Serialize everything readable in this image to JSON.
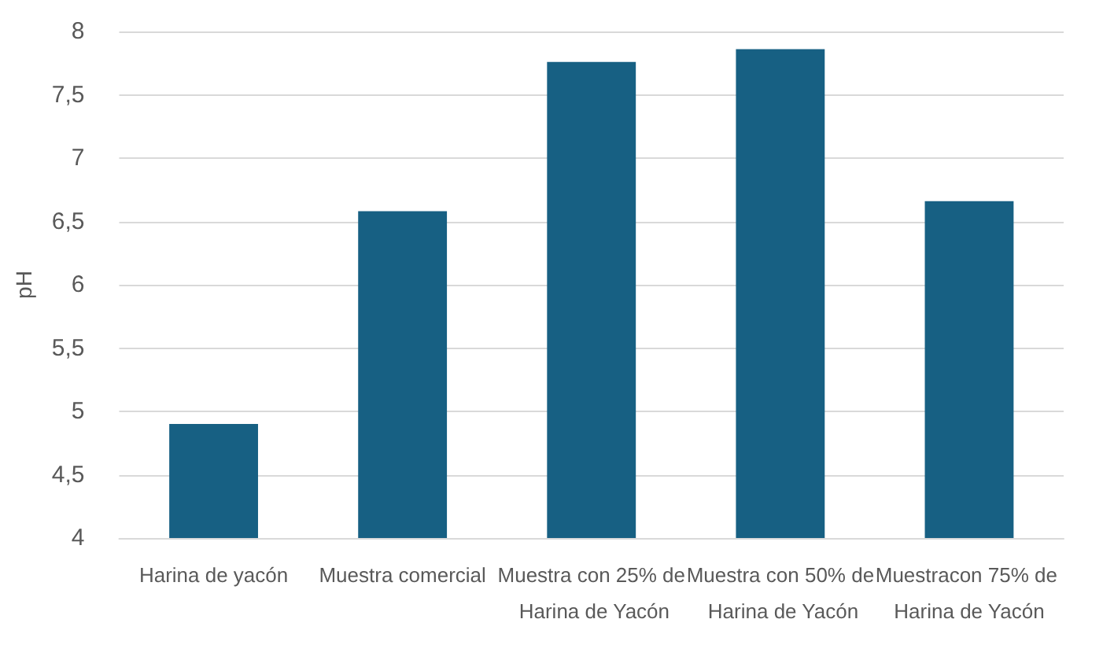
{
  "chart_data": {
    "type": "bar",
    "ylabel": "pH",
    "categories": [
      "Harina de yacón",
      "Muestra comercial",
      "Muestra con 25% de Harina de Yacón",
      "Muestra con 50% de Harina de Yacón",
      "Muestracon 75% de Harina de Yacón"
    ],
    "values": [
      4.9,
      6.58,
      7.76,
      7.86,
      6.66
    ],
    "color": "#176083",
    "ylim": [
      4,
      8
    ],
    "yticks": [
      4,
      {
        "value": 4.5,
        "label": "4,5"
      },
      5,
      {
        "value": 5.5,
        "label": "5,5"
      },
      6,
      {
        "value": 6.5,
        "label": "6,5"
      },
      7,
      {
        "value": 7.5,
        "label": "7,5"
      },
      8
    ],
    "grid": "y"
  }
}
